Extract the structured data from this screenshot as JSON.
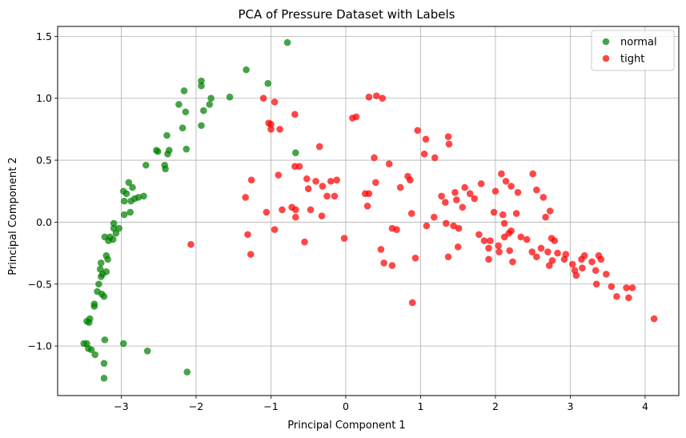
{
  "chart_data": {
    "type": "scatter",
    "title": "PCA of Pressure Dataset with Labels",
    "xlabel": "Principal Component 1",
    "ylabel": "Principal Component 2",
    "xlim": [
      -3.85,
      4.45
    ],
    "ylim": [
      -1.4,
      1.58
    ],
    "xticks": [
      -3,
      -2,
      -1,
      0,
      1,
      2,
      3,
      4
    ],
    "yticks": [
      -1.0,
      -0.5,
      0.0,
      0.5,
      1.0,
      1.5
    ],
    "xtick_labels": [
      "−3",
      "−2",
      "−1",
      "0",
      "1",
      "2",
      "3",
      "4"
    ],
    "ytick_labels": [
      "−1.0",
      "−0.5",
      "0.0",
      "0.5",
      "1.0",
      "1.5"
    ],
    "grid": true,
    "legend_position": "top-right",
    "series": [
      {
        "name": "normal",
        "color": "#008000",
        "points": [
          [
            -0.78,
            1.45
          ],
          [
            -1.33,
            1.23
          ],
          [
            -1.04,
            1.12
          ],
          [
            -1.93,
            1.14
          ],
          [
            -1.93,
            1.1
          ],
          [
            -1.55,
            1.01
          ],
          [
            -1.8,
            1.0
          ],
          [
            -2.16,
            1.06
          ],
          [
            -2.23,
            0.95
          ],
          [
            -2.14,
            0.89
          ],
          [
            -1.9,
            0.9
          ],
          [
            -1.82,
            0.95
          ],
          [
            -1.93,
            0.78
          ],
          [
            -2.18,
            0.76
          ],
          [
            -2.39,
            0.7
          ],
          [
            -2.13,
            0.59
          ],
          [
            -2.36,
            0.58
          ],
          [
            -2.38,
            0.55
          ],
          [
            -2.51,
            0.57
          ],
          [
            -2.53,
            0.58
          ],
          [
            -2.67,
            0.46
          ],
          [
            -2.42,
            0.46
          ],
          [
            -2.41,
            0.43
          ],
          [
            -0.67,
            0.56
          ],
          [
            -2.85,
            0.28
          ],
          [
            -2.9,
            0.32
          ],
          [
            -2.93,
            0.23
          ],
          [
            -2.7,
            0.21
          ],
          [
            -2.77,
            0.2
          ],
          [
            -2.82,
            0.19
          ],
          [
            -2.96,
            0.17
          ],
          [
            -2.87,
            0.17
          ],
          [
            -2.97,
            0.25
          ],
          [
            -2.88,
            0.08
          ],
          [
            -2.96,
            0.06
          ],
          [
            -3.1,
            -0.01
          ],
          [
            -3.1,
            -0.05
          ],
          [
            -3.03,
            -0.05
          ],
          [
            -3.07,
            -0.09
          ],
          [
            -3.15,
            -0.12
          ],
          [
            -3.22,
            -0.12
          ],
          [
            -3.17,
            -0.15
          ],
          [
            -3.11,
            -0.14
          ],
          [
            -3.2,
            -0.27
          ],
          [
            -3.18,
            -0.3
          ],
          [
            -3.27,
            -0.33
          ],
          [
            -3.28,
            -0.38
          ],
          [
            -3.25,
            -0.42
          ],
          [
            -3.27,
            -0.44
          ],
          [
            -3.3,
            -0.5
          ],
          [
            -3.32,
            -0.56
          ],
          [
            -3.26,
            -0.58
          ],
          [
            -3.23,
            -0.6
          ],
          [
            -3.36,
            -0.66
          ],
          [
            -3.36,
            -0.68
          ],
          [
            -3.42,
            -0.78
          ],
          [
            -3.43,
            -0.81
          ],
          [
            -3.46,
            -0.8
          ],
          [
            -3.22,
            -0.95
          ],
          [
            -3.46,
            -0.98
          ],
          [
            -3.5,
            -0.98
          ],
          [
            -3.44,
            -1.02
          ],
          [
            -3.4,
            -1.03
          ],
          [
            -3.35,
            -1.07
          ],
          [
            -3.23,
            -1.14
          ],
          [
            -3.23,
            -1.26
          ],
          [
            -2.97,
            -0.98
          ],
          [
            -2.65,
            -1.04
          ],
          [
            -2.12,
            -1.21
          ],
          [
            -3.2,
            -0.4
          ]
        ]
      },
      {
        "name": "tight",
        "color": "#ff0000",
        "points": [
          [
            -1.1,
            1.0
          ],
          [
            -0.95,
            0.97
          ],
          [
            -1.03,
            0.8
          ],
          [
            -1.0,
            0.79
          ],
          [
            -1.0,
            0.75
          ],
          [
            -0.88,
            0.75
          ],
          [
            -0.68,
            0.87
          ],
          [
            -0.68,
            0.45
          ],
          [
            -0.62,
            0.45
          ],
          [
            -0.35,
            0.61
          ],
          [
            -0.9,
            0.38
          ],
          [
            -1.26,
            0.34
          ],
          [
            -0.52,
            0.35
          ],
          [
            -0.4,
            0.33
          ],
          [
            -0.2,
            0.33
          ],
          [
            -0.12,
            0.34
          ],
          [
            -0.31,
            0.29
          ],
          [
            -0.5,
            0.27
          ],
          [
            -0.25,
            0.21
          ],
          [
            -0.15,
            0.21
          ],
          [
            -0.72,
            0.12
          ],
          [
            -0.67,
            0.1
          ],
          [
            -1.06,
            0.08
          ],
          [
            -1.34,
            0.2
          ],
          [
            -0.85,
            0.1
          ],
          [
            -0.47,
            0.1
          ],
          [
            -0.32,
            0.05
          ],
          [
            -0.67,
            0.04
          ],
          [
            -0.95,
            -0.06
          ],
          [
            -1.31,
            -0.1
          ],
          [
            -1.27,
            -0.26
          ],
          [
            -2.07,
            -0.18
          ],
          [
            -0.55,
            -0.16
          ],
          [
            -0.02,
            -0.13
          ],
          [
            0.09,
            0.84
          ],
          [
            0.14,
            0.85
          ],
          [
            0.31,
            1.01
          ],
          [
            0.41,
            1.02
          ],
          [
            0.49,
            1.0
          ],
          [
            0.38,
            0.52
          ],
          [
            0.4,
            0.32
          ],
          [
            0.58,
            0.47
          ],
          [
            0.26,
            0.23
          ],
          [
            0.31,
            0.23
          ],
          [
            0.83,
            0.37
          ],
          [
            0.86,
            0.34
          ],
          [
            0.73,
            0.28
          ],
          [
            0.29,
            0.13
          ],
          [
            0.88,
            0.07
          ],
          [
            0.62,
            -0.05
          ],
          [
            0.68,
            -0.06
          ],
          [
            0.47,
            -0.22
          ],
          [
            0.51,
            -0.33
          ],
          [
            0.62,
            -0.35
          ],
          [
            0.93,
            -0.29
          ],
          [
            0.89,
            -0.65
          ],
          [
            0.96,
            0.74
          ],
          [
            1.07,
            0.67
          ],
          [
            1.05,
            0.55
          ],
          [
            1.19,
            0.52
          ],
          [
            1.37,
            0.69
          ],
          [
            1.38,
            0.63
          ],
          [
            1.46,
            0.24
          ],
          [
            1.59,
            0.28
          ],
          [
            1.28,
            0.21
          ],
          [
            1.48,
            0.18
          ],
          [
            1.56,
            0.12
          ],
          [
            1.33,
            0.16
          ],
          [
            1.18,
            0.04
          ],
          [
            1.08,
            -0.03
          ],
          [
            1.34,
            -0.01
          ],
          [
            1.44,
            -0.03
          ],
          [
            1.51,
            -0.05
          ],
          [
            1.66,
            0.23
          ],
          [
            1.72,
            0.19
          ],
          [
            1.81,
            0.31
          ],
          [
            1.78,
            -0.1
          ],
          [
            1.85,
            -0.15
          ],
          [
            1.93,
            -0.15
          ],
          [
            1.91,
            -0.21
          ],
          [
            1.98,
            0.08
          ],
          [
            2.08,
            0.39
          ],
          [
            2.14,
            0.33
          ],
          [
            2.21,
            0.29
          ],
          [
            2.3,
            0.24
          ],
          [
            2.28,
            0.07
          ],
          [
            2.1,
            0.06
          ],
          [
            2.12,
            -0.01
          ],
          [
            2.21,
            -0.07
          ],
          [
            2.18,
            -0.09
          ],
          [
            2.04,
            -0.19
          ],
          [
            2.05,
            -0.24
          ],
          [
            2.12,
            -0.12
          ],
          [
            2.19,
            -0.23
          ],
          [
            2.23,
            -0.32
          ],
          [
            2.34,
            -0.12
          ],
          [
            2.42,
            -0.14
          ],
          [
            2.49,
            -0.24
          ],
          [
            2.55,
            -0.28
          ],
          [
            2.61,
            -0.21
          ],
          [
            2.67,
            0.04
          ],
          [
            2.73,
            0.09
          ],
          [
            2.55,
            0.26
          ],
          [
            2.64,
            0.2
          ],
          [
            2.5,
            0.39
          ],
          [
            2.75,
            -0.13
          ],
          [
            2.79,
            -0.15
          ],
          [
            2.7,
            -0.24
          ],
          [
            2.76,
            -0.31
          ],
          [
            2.72,
            -0.35
          ],
          [
            2.83,
            -0.25
          ],
          [
            2.92,
            -0.3
          ],
          [
            2.94,
            -0.26
          ],
          [
            3.03,
            -0.34
          ],
          [
            3.06,
            -0.39
          ],
          [
            3.08,
            -0.43
          ],
          [
            3.16,
            -0.37
          ],
          [
            3.15,
            -0.3
          ],
          [
            3.19,
            -0.27
          ],
          [
            3.29,
            -0.32
          ],
          [
            3.34,
            -0.39
          ],
          [
            3.38,
            -0.27
          ],
          [
            3.41,
            -0.3
          ],
          [
            3.48,
            -0.42
          ],
          [
            3.55,
            -0.52
          ],
          [
            3.62,
            -0.6
          ],
          [
            3.75,
            -0.53
          ],
          [
            3.78,
            -0.61
          ],
          [
            3.83,
            -0.53
          ],
          [
            3.35,
            -0.5
          ],
          [
            4.12,
            -0.78
          ],
          [
            1.37,
            -0.28
          ],
          [
            1.5,
            -0.2
          ],
          [
            1.91,
            -0.3
          ],
          [
            2.0,
            0.25
          ]
        ]
      }
    ]
  }
}
